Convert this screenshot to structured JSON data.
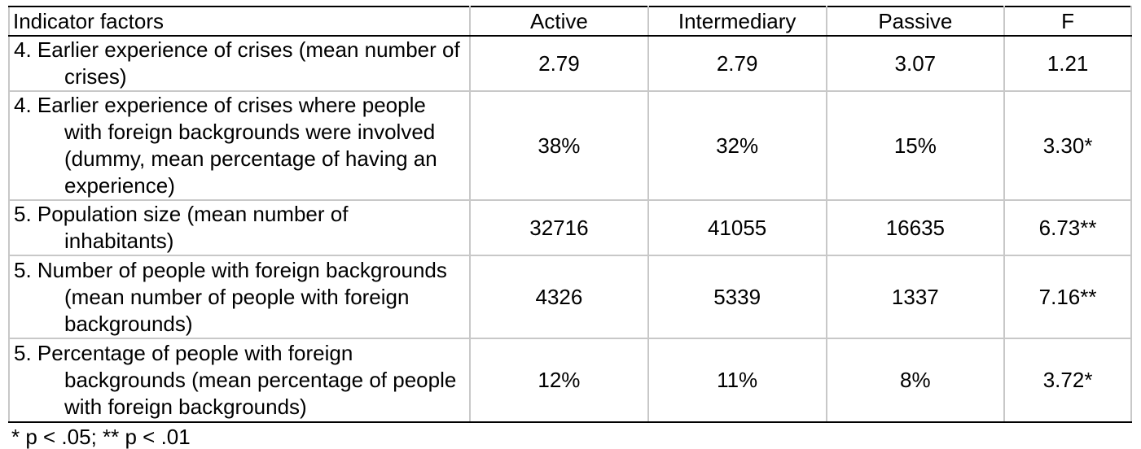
{
  "table": {
    "headers": [
      "Indicator factors",
      "Active",
      "Intermediary",
      "Passive",
      "F"
    ],
    "rows": [
      [
        "4. Earlier experience of crises (mean number of crises)",
        "2.79",
        "2.79",
        "3.07",
        "1.21"
      ],
      [
        "4. Earlier experience of crises where people with foreign backgrounds were involved (dummy, mean percentage of having an experience)",
        "38%",
        "32%",
        "15%",
        "3.30*"
      ],
      [
        "5. Population size (mean number of inhabitants)",
        "32716",
        "41055",
        "16635",
        "6.73**"
      ],
      [
        "5. Number of people with foreign backgrounds (mean number of people with foreign backgrounds)",
        "4326",
        "5339",
        "1337",
        "7.16**"
      ],
      [
        "5. Percentage of people with foreign backgrounds (mean percentage of people with foreign backgrounds)",
        "12%",
        "11%",
        "8%",
        "3.72*"
      ]
    ]
  },
  "footnote": "* p < .05; ** p < .01"
}
